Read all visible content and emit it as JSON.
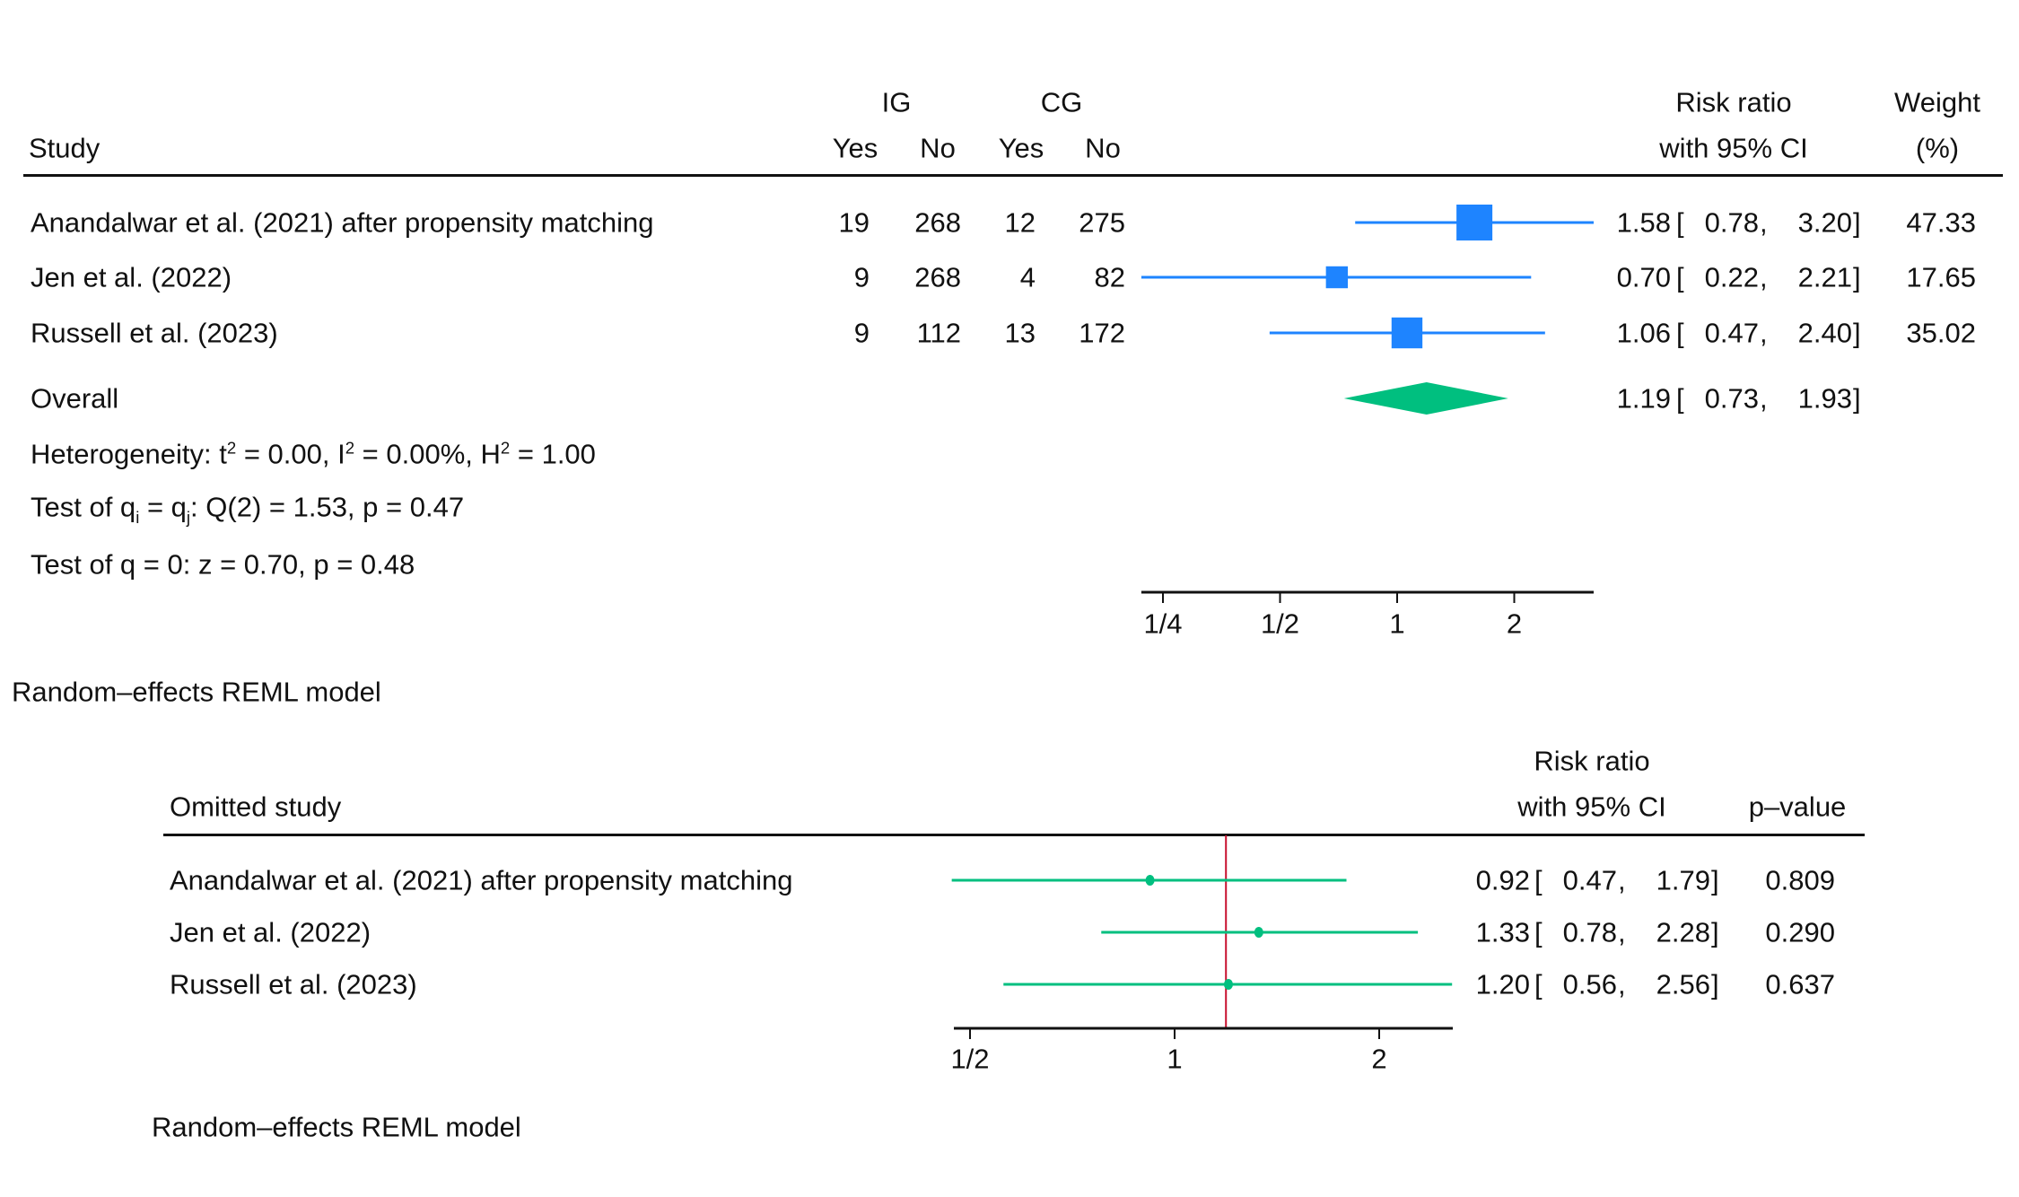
{
  "chart_data": [
    {
      "type": "forest",
      "header": {
        "study": "Study",
        "group1": "IG",
        "group2": "CG",
        "yes": "Yes",
        "no": "No",
        "effect_line1": "Risk ratio",
        "effect_line2": "with 95% CI",
        "weight_line1": "Weight",
        "weight_line2": "(%)"
      },
      "xscale": "log",
      "xlim": [
        0.22,
        3.2
      ],
      "ticks": [
        0.25,
        0.5,
        1,
        2
      ],
      "tick_labels": [
        "1/4",
        "1/2",
        "1",
        "2"
      ],
      "colors": {
        "study": "#1E84FF",
        "overall": "#00BF7F"
      },
      "studies": [
        {
          "name": "Anandalwar et al. (2021) after propensity matching",
          "ig_yes": "19",
          "ig_no": "268",
          "cg_yes": "12",
          "cg_no": "275",
          "rr": 1.58,
          "lo": 0.78,
          "hi": 3.2,
          "rr_t": "1.58",
          "lo_t": "0.78",
          "hi_t": "3.20",
          "weight": "47.33"
        },
        {
          "name": "Jen et al. (2022)",
          "ig_yes": "9",
          "ig_no": "268",
          "cg_yes": "4",
          "cg_no": "82",
          "rr": 0.7,
          "lo": 0.22,
          "hi": 2.21,
          "rr_t": "0.70",
          "lo_t": "0.22",
          "hi_t": "2.21",
          "weight": "17.65"
        },
        {
          "name": "Russell et al. (2023)",
          "ig_yes": "9",
          "ig_no": "112",
          "cg_yes": "13",
          "cg_no": "172",
          "rr": 1.06,
          "lo": 0.47,
          "hi": 2.4,
          "rr_t": "1.06",
          "lo_t": "0.47",
          "hi_t": "2.40",
          "weight": "35.02"
        }
      ],
      "overall": {
        "label": "Overall",
        "rr": 1.19,
        "lo": 0.73,
        "hi": 1.93,
        "rr_t": "1.19",
        "lo_t": "0.73",
        "hi_t": "1.93"
      },
      "heterogeneity": {
        "prefix": "Heterogeneity: t",
        "a": " = 0.00, I",
        "b": " = 0.00%, H",
        "c": " = 1.00",
        "sup": "2"
      },
      "test_q": {
        "prefix": "Test of q",
        "i": "i",
        "mid": " = q",
        "j": "j",
        "rest": ": Q(2) = 1.53, p = 0.47"
      },
      "test_zero": "Test of q = 0: z = 0.70, p = 0.48",
      "footer": "Random–effects REML model"
    },
    {
      "type": "leave-one-out",
      "header": {
        "study": "Omitted study",
        "effect_line1": "Risk ratio",
        "effect_line2": "with 95% CI",
        "pvalue": "p–value"
      },
      "xscale": "log",
      "xlim": [
        0.47,
        2.56
      ],
      "ticks": [
        0.5,
        1,
        2
      ],
      "tick_labels": [
        "1/2",
        "1",
        "2"
      ],
      "reference_line": 1.19,
      "colors": {
        "marker": "#00BF7F",
        "reference": "#C8102E"
      },
      "rows": [
        {
          "name": "Anandalwar et al. (2021) after propensity matching",
          "rr": 0.92,
          "lo": 0.47,
          "hi": 1.79,
          "rr_t": "0.92",
          "lo_t": "0.47",
          "hi_t": "1.79",
          "p": "0.809"
        },
        {
          "name": "Jen et al. (2022)",
          "rr": 1.33,
          "lo": 0.78,
          "hi": 2.28,
          "rr_t": "1.33",
          "lo_t": "0.78",
          "hi_t": "2.28",
          "p": "0.290"
        },
        {
          "name": "Russell et al. (2023)",
          "rr": 1.2,
          "lo": 0.56,
          "hi": 2.56,
          "rr_t": "1.20",
          "lo_t": "0.56",
          "hi_t": "2.56",
          "p": "0.637"
        }
      ],
      "footer": "Random–effects REML model"
    }
  ]
}
